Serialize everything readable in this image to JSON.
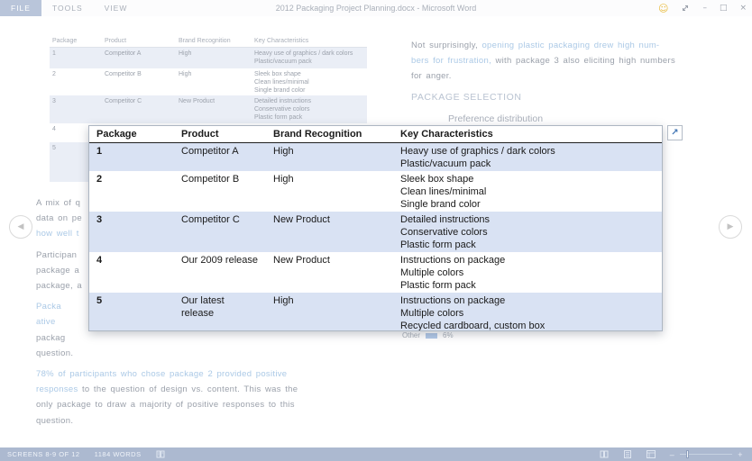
{
  "window": {
    "tabs": [
      {
        "label": "FILE",
        "active": true
      },
      {
        "label": "TOOLS",
        "active": false
      },
      {
        "label": "VIEW",
        "active": false
      }
    ],
    "title": "2012 Packaging Project Planning.docx - Microsoft Word"
  },
  "icons": {
    "smiley": "☺",
    "minimize": "–",
    "maximize": "□",
    "close": "×",
    "nav_prev": "◀",
    "nav_next": "▶",
    "expand": "↗",
    "zoom_out": "–",
    "zoom_in": "+"
  },
  "zoom_table": {
    "headers": [
      "Package",
      "Product",
      "Brand Recognition",
      "Key Characteristics"
    ],
    "rows": [
      {
        "package": "1",
        "product": "Competitor A",
        "brand": "High",
        "characteristics": [
          "Heavy use of graphics / dark colors",
          "Plastic/vacuum pack"
        ],
        "shaded": true
      },
      {
        "package": "2",
        "product": "Competitor B",
        "brand": "High",
        "characteristics": [
          "Sleek box shape",
          "Clean lines/minimal",
          "Single brand color"
        ],
        "shaded": false
      },
      {
        "package": "3",
        "product": "Competitor C",
        "brand": "New Product",
        "characteristics": [
          "Detailed instructions",
          "Conservative colors",
          "Plastic form pack"
        ],
        "shaded": true
      },
      {
        "package": "4",
        "product": "Our 2009 release",
        "brand": "New Product",
        "characteristics": [
          "Instructions on package",
          "Multiple colors",
          "Plastic form pack"
        ],
        "shaded": false
      },
      {
        "package": "5",
        "product": "Our latest release",
        "brand": "High",
        "characteristics": [
          "Instructions on package",
          "Multiple colors",
          "Recycled cardboard, custom box"
        ],
        "shaded": true
      }
    ]
  },
  "background": {
    "table": {
      "headers": [
        "Package",
        "Product",
        "Brand Recognition",
        "Key Characteristics"
      ],
      "rows": [
        {
          "package": "1",
          "product": "Competitor A",
          "brand": "High",
          "characteristics": [
            "Heavy use of graphics / dark colors",
            "Plastic/vacuum pack"
          ],
          "shaded": true
        },
        {
          "package": "2",
          "product": "Competitor B",
          "brand": "High",
          "characteristics": [
            "Sleek box shape",
            "Clean lines/minimal",
            "Single brand color"
          ],
          "shaded": false
        },
        {
          "package": "3",
          "product": "Competitor C",
          "brand": "New Product",
          "characteristics": [
            "Detailed instructions",
            "Conservative colors",
            "Plastic form pack"
          ],
          "shaded": true
        },
        {
          "package": "4",
          "product": "",
          "brand": "",
          "characteristics": [],
          "shaded": false
        },
        {
          "package": "5",
          "product": "",
          "brand": "",
          "characteristics": [],
          "shaded": true
        }
      ]
    },
    "left_lines": [
      {
        "segments": [
          {
            "t": "A mix of q",
            "c": "gray"
          }
        ]
      },
      {
        "segments": [
          {
            "t": "data on pe",
            "c": "gray"
          }
        ]
      },
      {
        "segments": [
          {
            "t": "how well t",
            "c": "blue"
          }
        ]
      },
      {
        "gap": true,
        "segments": [
          {
            "t": "Participan",
            "c": "gray"
          }
        ]
      },
      {
        "segments": [
          {
            "t": "package a",
            "c": "gray"
          }
        ]
      },
      {
        "segments": [
          {
            "t": "package, a",
            "c": "gray"
          }
        ]
      },
      {
        "gap": true,
        "segments": [
          {
            "t": "Packa",
            "c": "blue"
          }
        ]
      },
      {
        "segments": [
          {
            "t": "ative",
            "c": "blue"
          }
        ]
      },
      {
        "segments": [
          {
            "t": "packag",
            "c": "gray"
          }
        ]
      },
      {
        "segments": [
          {
            "t": "question.",
            "c": "gray"
          }
        ]
      },
      {
        "gap": true,
        "segments": [
          {
            "t": "78% of participants who chose package 2 provided positive",
            "c": "blue"
          }
        ]
      },
      {
        "segments": [
          {
            "t": "responses",
            "c": "blue"
          },
          {
            "t": " to the question of design vs. content. This was the",
            "c": "gray"
          }
        ]
      },
      {
        "segments": [
          {
            "t": "only package to draw a majority of positive responses to this",
            "c": "gray"
          }
        ]
      },
      {
        "segments": [
          {
            "t": "question.",
            "c": "gray"
          }
        ]
      }
    ],
    "right_lines": [
      {
        "segments": [
          {
            "t": "Not surprisingly, ",
            "c": "gray"
          },
          {
            "t": "opening plastic packaging drew high num-",
            "c": "blue"
          }
        ]
      },
      {
        "segments": [
          {
            "t": "bers for frustration,",
            "c": "blue"
          },
          {
            "t": " with package 3 also eliciting high numbers",
            "c": "gray"
          }
        ]
      },
      {
        "segments": [
          {
            "t": "for anger.",
            "c": "gray"
          }
        ]
      }
    ],
    "heading": "PACKAGE SELECTION",
    "chart_title": "Preference distribution",
    "chart_fragment": {
      "label": "Other",
      "value": "6%"
    }
  },
  "statusbar": {
    "screens": "SCREENS 8-9 OF 12",
    "words": "1184 WORDS"
  },
  "colors": {
    "row_shading": "#d9e2f3",
    "bg_row_shading": "#eaeef6",
    "statusbar_bg": "#acb9d0",
    "file_tab_bg": "#b9c5da",
    "doc_blue": "#abc9e6",
    "doc_gray": "#9ba1ab",
    "smiley_yellow": "#e9bd43",
    "expand_arrow_blue": "#3f74b3"
  }
}
